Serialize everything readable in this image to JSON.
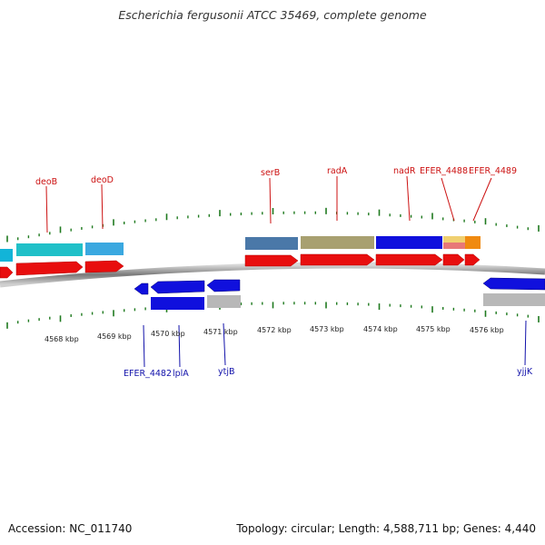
{
  "title": "Escherichia fergusonii ATCC 35469, complete genome",
  "footer": {
    "accession": "Accession: NC_011740",
    "summary": "Topology: circular; Length: 4,588,711 bp; Genes: 4,440"
  },
  "colors": {
    "backbone": "#8c8c8c",
    "tick": "#1f7a1f",
    "top_label": "#cc1111",
    "bottom_label": "#1111aa"
  },
  "scale": {
    "labels": [
      "4568 kbp",
      "4569 kbp",
      "4570 kbp",
      "4571 kbp",
      "4572 kbp",
      "4573 kbp",
      "4574 kbp",
      "4575 kbp",
      "4576 kbp"
    ]
  },
  "gene_labels_top": [
    "deoB",
    "deoD",
    "serB",
    "radA",
    "nadR",
    "EFER_4488",
    "EFER_4489"
  ],
  "gene_labels_bottom": [
    "EFER_4482",
    "lplA",
    "ytjB",
    "yjjK"
  ],
  "feature_tracks": {
    "top_cds_colors": [
      "#12b4d8",
      "#20c0c8",
      "#3aa8e0",
      "#4a78a8",
      "#a8a070",
      "#1010dd",
      "#f0b050",
      "#f08a10"
    ],
    "bottom_cds_colors": [
      "#1010dd",
      "#1010dd",
      "#b0b0b0",
      "#1010dd"
    ]
  }
}
